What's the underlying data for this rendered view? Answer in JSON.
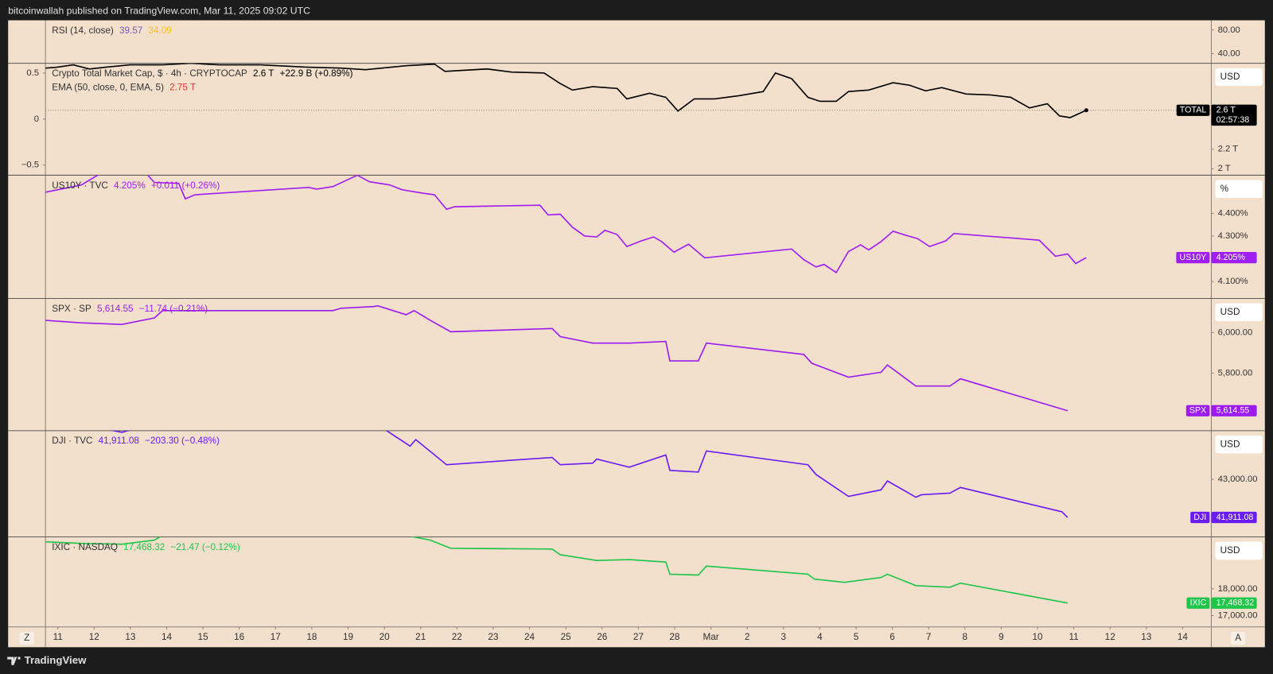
{
  "header": {
    "text": "bitcoinwallah published on TradingView.com, Mar 11, 2025 09:02 UTC"
  },
  "footer": {
    "brand": "TradingView"
  },
  "axis_buttons": {
    "left": "Z",
    "right": "A"
  },
  "chart_data": [
    {
      "type": "line",
      "title": "RSI (14, close)",
      "readings": [
        "39.57",
        "34.09"
      ],
      "reading_colors": [
        "#7e57c2",
        "#f5c518"
      ],
      "ylim": [
        23.4,
        96.6
      ],
      "yticks": [
        {
          "value": 80,
          "label": "80.00"
        },
        {
          "value": 40,
          "label": "40.00"
        }
      ],
      "series": []
    },
    {
      "type": "line",
      "title": "Crypto Total Market Cap, $ · 4h · CRYPTOCAP",
      "readings": [
        "2.6 T",
        "+22.9 B (+0.89%)"
      ],
      "reading_colors": [
        "#000000",
        "#000000"
      ],
      "indicator": {
        "title": "EMA (50, close, 0, EMA, 5)",
        "readings": [
          "2.75 T"
        ],
        "reading_colors": [
          "#e53935"
        ]
      },
      "unit_box": "USD",
      "ylim": [
        1.933,
        3.083
      ],
      "yticks": [
        {
          "value": 2,
          "label": "2 T"
        },
        {
          "value": 2.2,
          "label": "2.2 T"
        }
      ],
      "y2lim": [
        -0.61,
        0.606
      ],
      "y2ticks": [
        0.5,
        0,
        {
          "value": -0.5,
          "label": "−0.5"
        }
      ],
      "series": [
        {
          "name": "TOTAL",
          "color": "#000000",
          "last_value_label": "2.6 T",
          "countdown": "02:57:38",
          "x": [
            -0.336,
            -0.022,
            0.425,
            0.872,
            1.32,
            1.99,
            2.886,
            3.669,
            4.452,
            5.57,
            6.913,
            7.808,
            8.479,
            9.597,
            10.38,
            10.67,
            11.834,
            12.506,
            13.4,
            13.848,
            14.183,
            14.743,
            15.414,
            15.683,
            16.309,
            16.756,
            17.092,
            17.539,
            18.098,
            18.77,
            19.441,
            19.776,
            20.224,
            20.671,
            21.007,
            21.454,
            21.79,
            22.349,
            23.02,
            23.468,
            23.915,
            24.362,
            25.034,
            25.705,
            26.264,
            26.779,
            27.271,
            27.606,
            27.897,
            28.345
          ],
          "values": [
            3.033,
            3.042,
            3.067,
            3.025,
            3.042,
            3.067,
            3.067,
            3.083,
            3.067,
            3.067,
            3.042,
            3.033,
            3.017,
            3.058,
            3.075,
            3.0,
            3.025,
            2.992,
            2.983,
            2.875,
            2.808,
            2.842,
            2.825,
            2.717,
            2.775,
            2.733,
            2.592,
            2.717,
            2.717,
            2.75,
            2.792,
            2.983,
            2.925,
            2.733,
            2.692,
            2.692,
            2.792,
            2.808,
            2.883,
            2.858,
            2.8,
            2.833,
            2.767,
            2.758,
            2.733,
            2.625,
            2.667,
            2.542,
            2.525,
            2.6
          ]
        }
      ]
    },
    {
      "type": "line",
      "title": "US10Y · TVC",
      "readings": [
        "4.205%",
        "+0.011 (+0.26%)"
      ],
      "reading_colors": [
        "#a01ff0",
        "#a01ff0"
      ],
      "unit_box": "%",
      "ylim": [
        4.025,
        4.568
      ],
      "yticks": [
        {
          "value": 4.4,
          "label": "4.400%"
        },
        {
          "value": 4.3,
          "label": "4.300%"
        },
        {
          "value": 4.1,
          "label": "4.100%"
        }
      ],
      "series": [
        {
          "name": "US10Y",
          "color": "#a01ff0",
          "last_value_label": "4.205%",
          "x": [
            -0.336,
            0.649,
            1.32,
            2.438,
            2.662,
            3.333,
            3.512,
            3.781,
            6.913,
            7.136,
            7.584,
            8.255,
            8.591,
            9.15,
            9.485,
            10.045,
            10.38,
            10.716,
            10.94,
            13.289,
            13.512,
            13.848,
            14.183,
            14.519,
            14.855,
            15.078,
            15.414,
            15.683,
            16.085,
            16.421,
            16.644,
            16.98,
            17.383,
            17.83,
            20.224,
            20.559,
            20.895,
            21.119,
            21.454,
            21.79,
            22.125,
            22.349,
            22.685,
            23.02,
            23.356,
            23.691,
            24.027,
            24.474,
            24.698,
            27.047,
            27.494,
            27.83,
            28.054,
            28.345
          ],
          "values": [
            4.493,
            4.525,
            4.589,
            4.575,
            4.536,
            4.532,
            4.464,
            4.482,
            4.514,
            4.507,
            4.518,
            4.568,
            4.539,
            4.525,
            4.504,
            4.489,
            4.482,
            4.418,
            4.429,
            4.436,
            4.393,
            4.396,
            4.339,
            4.3,
            4.296,
            4.325,
            4.307,
            4.254,
            4.279,
            4.296,
            4.275,
            4.229,
            4.264,
            4.204,
            4.243,
            4.196,
            4.164,
            4.175,
            4.139,
            4.232,
            4.261,
            4.239,
            4.275,
            4.321,
            4.304,
            4.289,
            4.254,
            4.279,
            4.311,
            4.282,
            4.211,
            4.221,
            4.179,
            4.205
          ]
        }
      ]
    },
    {
      "type": "line",
      "title": "SPX · SP",
      "readings": [
        "5,614.55",
        "−11.74 (−0.21%)"
      ],
      "reading_colors": [
        "#9c1cf0",
        "#9c1cf0"
      ],
      "unit_box": "USD",
      "ylim": [
        5516,
        6168
      ],
      "yticks": [
        {
          "value": 6000,
          "label": "6,000.00"
        },
        {
          "value": 5800,
          "label": "5,800.00"
        }
      ],
      "series": [
        {
          "name": "SPX",
          "color": "#9c1cf0",
          "last_value_label": "5,614.55",
          "x": [
            -0.336,
            0.649,
            1.767,
            2.662,
            2.886,
            7.584,
            7.808,
            8.702,
            8.814,
            9.597,
            9.821,
            10.268,
            10.828,
            13.624,
            13.848,
            14.743,
            15.749,
            16.756,
            16.868,
            17.651,
            17.875,
            20.559,
            20.783,
            21.79,
            22.685,
            22.864,
            23.647,
            24.586,
            24.877,
            27.83
          ],
          "values": [
            6060,
            6048,
            6040,
            6072,
            6108,
            6108,
            6120,
            6128,
            6132,
            6088,
            6108,
            6060,
            6004,
            6020,
            5980,
            5948,
            5948,
            5956,
            5860,
            5860,
            5948,
            5892,
            5848,
            5780,
            5804,
            5840,
            5736,
            5736,
            5772,
            5614.55
          ]
        }
      ]
    },
    {
      "type": "line",
      "title": "DJI · TVC",
      "readings": [
        "41,911.08",
        "−203.30 (−0.48%)"
      ],
      "reading_colors": [
        "#6a1cf2",
        "#6a1cf2"
      ],
      "unit_box": "USD",
      "ylim": [
        41355,
        44390
      ],
      "yticks": [
        {
          "value": 43000,
          "label": "43,000.00"
        }
      ],
      "series": [
        {
          "name": "DJI",
          "color": "#6a1cf2",
          "last_value_label": "41,911.08",
          "x": [
            -0.336,
            1.767,
            2.438,
            8.926,
            9.709,
            9.866,
            10.716,
            13.624,
            13.848,
            14.743,
            14.855,
            15.749,
            16.756,
            16.868,
            17.651,
            17.875,
            20.671,
            20.895,
            21.79,
            22.685,
            22.864,
            23.647,
            23.803,
            24.586,
            24.877,
            27.673,
            27.83
          ],
          "values": [
            44761,
            44344,
            44529,
            44483,
            43950,
            44135,
            43417,
            43625,
            43417,
            43463,
            43579,
            43348,
            43695,
            43255,
            43209,
            43811,
            43417,
            43139,
            42513,
            42699,
            42954,
            42490,
            42560,
            42606,
            42768,
            42073,
            41911.08
          ]
        }
      ]
    },
    {
      "type": "line",
      "title": "IXIC · NASDAQ",
      "readings": [
        "17,468.32",
        "−21.47 (−0.12%)"
      ],
      "reading_colors": [
        "#1fc64a",
        "#1fc64a"
      ],
      "unit_box": "USD",
      "ylim": [
        16576,
        19939
      ],
      "yticks": [
        {
          "value": 18000,
          "label": "18,000.00"
        },
        {
          "value": 17000,
          "label": "17,000.00"
        }
      ],
      "xlim": [
        -0.34,
        31.79
      ],
      "xticks": [
        {
          "value": 0,
          "label": "11"
        },
        {
          "value": 1,
          "label": "12"
        },
        {
          "value": 2,
          "label": "13"
        },
        {
          "value": 3,
          "label": "14"
        },
        {
          "value": 4,
          "label": "15"
        },
        {
          "value": 5,
          "label": "16"
        },
        {
          "value": 6,
          "label": "17"
        },
        {
          "value": 7,
          "label": "18"
        },
        {
          "value": 8,
          "label": "19"
        },
        {
          "value": 9,
          "label": "20"
        },
        {
          "value": 10,
          "label": "21"
        },
        {
          "value": 11,
          "label": "22"
        },
        {
          "value": 12,
          "label": "23"
        },
        {
          "value": 13,
          "label": "24"
        },
        {
          "value": 14,
          "label": "25"
        },
        {
          "value": 15,
          "label": "26"
        },
        {
          "value": 16,
          "label": "27"
        },
        {
          "value": 17,
          "label": "28"
        },
        {
          "value": 18,
          "label": "Mar"
        },
        {
          "value": 19,
          "label": "2"
        },
        {
          "value": 20,
          "label": "3"
        },
        {
          "value": 21,
          "label": "4"
        },
        {
          "value": 22,
          "label": "5"
        },
        {
          "value": 23,
          "label": "6"
        },
        {
          "value": 24,
          "label": "7"
        },
        {
          "value": 25,
          "label": "8"
        },
        {
          "value": 26,
          "label": "9"
        },
        {
          "value": 27,
          "label": "10"
        },
        {
          "value": 28,
          "label": "11"
        },
        {
          "value": 29,
          "label": "12"
        },
        {
          "value": 30,
          "label": "13"
        },
        {
          "value": 31,
          "label": "14"
        }
      ],
      "series": [
        {
          "name": "IXIC",
          "color": "#1fc64a",
          "last_value_label": "17,468.32",
          "x": [
            -0.336,
            0.649,
            1.767,
            2.662,
            2.886,
            9.597,
            9.821,
            10.268,
            10.828,
            13.624,
            13.848,
            14.855,
            15.749,
            16.756,
            16.868,
            17.651,
            17.875,
            20.671,
            20.85,
            21.678,
            22.685,
            22.864,
            23.647,
            24.586,
            24.877,
            27.83
          ],
          "values": [
            19757,
            19697,
            19667,
            19818,
            20000,
            20000,
            19939,
            19818,
            19515,
            19485,
            19273,
            19061,
            19091,
            19000,
            18545,
            18515,
            18848,
            18545,
            18364,
            18242,
            18424,
            18545,
            18121,
            18061,
            18212,
            17468.32
          ]
        }
      ]
    }
  ]
}
